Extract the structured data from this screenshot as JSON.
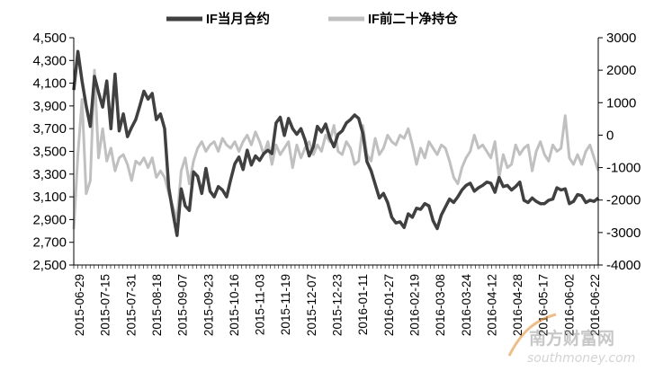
{
  "chart_data": {
    "type": "line",
    "title": "",
    "grid": false,
    "legend_position": "top-center",
    "left_axis": {
      "ylim": [
        2500,
        4500
      ],
      "ticks": [
        "2,500",
        "2,700",
        "2,900",
        "3,100",
        "3,300",
        "3,500",
        "3,700",
        "3,900",
        "4,100",
        "4,300",
        "4,500"
      ]
    },
    "right_axis": {
      "ylim": [
        -4000,
        3000
      ],
      "ticks": [
        "-4000",
        "-3000",
        "-2000",
        "-1000",
        "0",
        "1000",
        "2000",
        "3000"
      ]
    },
    "x_tick_labels": [
      "2015-06-29",
      "2015-07-15",
      "2015-07-31",
      "2015-08-18",
      "2015-09-07",
      "2015-09-23",
      "2015-10-16",
      "2015-11-03",
      "2015-11-19",
      "2015-12-07",
      "2015-12-23",
      "2016-01-11",
      "2016-01-27",
      "2016-02-19",
      "2016-03-08",
      "2016-03-24",
      "2016-04-12",
      "2016-04-28",
      "2016-05-17",
      "2016-06-02",
      "2016-06-22"
    ],
    "series": [
      {
        "name": "IF当月合约",
        "axis": "left",
        "color": "#404040",
        "values": [
          4040,
          4380,
          4120,
          3900,
          3720,
          4160,
          4020,
          3890,
          4120,
          3700,
          4180,
          3680,
          3830,
          3630,
          3710,
          3780,
          3900,
          4030,
          3960,
          4010,
          3780,
          3830,
          3700,
          3180,
          2960,
          2760,
          3170,
          3020,
          2980,
          3320,
          3280,
          3130,
          3350,
          3150,
          3100,
          3190,
          3160,
          3100,
          3250,
          3390,
          3450,
          3340,
          3510,
          3380,
          3460,
          3420,
          3480,
          3510,
          3480,
          3750,
          3800,
          3640,
          3790,
          3700,
          3650,
          3700,
          3600,
          3460,
          3540,
          3720,
          3670,
          3740,
          3620,
          3540,
          3650,
          3680,
          3750,
          3780,
          3820,
          3790,
          3660,
          3410,
          3330,
          3210,
          3090,
          3130,
          3050,
          2920,
          2870,
          2880,
          2830,
          2950,
          2920,
          3000,
          2990,
          3040,
          3020,
          2890,
          2820,
          2940,
          3010,
          3080,
          3050,
          3100,
          3160,
          3200,
          3220,
          3150,
          3180,
          3200,
          3230,
          3220,
          3140,
          3270,
          3190,
          3200,
          3160,
          3190,
          3230,
          3070,
          3050,
          3090,
          3060,
          3040,
          3040,
          3070,
          3080,
          3180,
          3160,
          3170,
          3040,
          3060,
          3120,
          3110,
          3050,
          3070,
          3060,
          3090
        ]
      },
      {
        "name": "IF前二十净持仓",
        "axis": "right",
        "color": "#c0c0c0",
        "values": [
          -2900,
          -600,
          1100,
          -1800,
          -1400,
          2000,
          -700,
          200,
          -800,
          -400,
          -1100,
          -700,
          -600,
          -900,
          -1400,
          -800,
          -900,
          -700,
          -1000,
          -700,
          -1300,
          -1100,
          -1300,
          -1800,
          -2200,
          -2600,
          -1100,
          -700,
          -1500,
          -800,
          -400,
          -200,
          -500,
          -300,
          -200,
          -500,
          -100,
          -300,
          -400,
          -200,
          -500,
          -200,
          0,
          -300,
          100,
          -200,
          -600,
          -200,
          -900,
          -300,
          -600,
          -400,
          -200,
          -1000,
          -300,
          -700,
          -400,
          -200,
          -600,
          -300,
          -500,
          0,
          -200,
          300,
          -500,
          -600,
          -200,
          -400,
          -900,
          -800,
          300,
          -600,
          -800,
          -100,
          -600,
          -400,
          0,
          -200,
          -300,
          0,
          -100,
          200,
          -300,
          -900,
          -400,
          -700,
          -200,
          -400,
          -600,
          -300,
          -400,
          -800,
          -1300,
          -1500,
          -1000,
          -700,
          -500,
          0,
          -400,
          -300,
          -500,
          -700,
          -200,
          -1300,
          -600,
          -1000,
          -900,
          -300,
          -600,
          -400,
          -300,
          -1100,
          -500,
          -200,
          -600,
          -800,
          -300,
          -500,
          -400,
          600,
          -700,
          -900,
          -600,
          -900,
          -500,
          -300,
          -700,
          -1100
        ]
      }
    ]
  },
  "legend": {
    "items": [
      "IF当月合约",
      "IF前二十净持仓"
    ]
  },
  "watermark": {
    "text": "南方财富网",
    "url": "southmoney.com"
  }
}
